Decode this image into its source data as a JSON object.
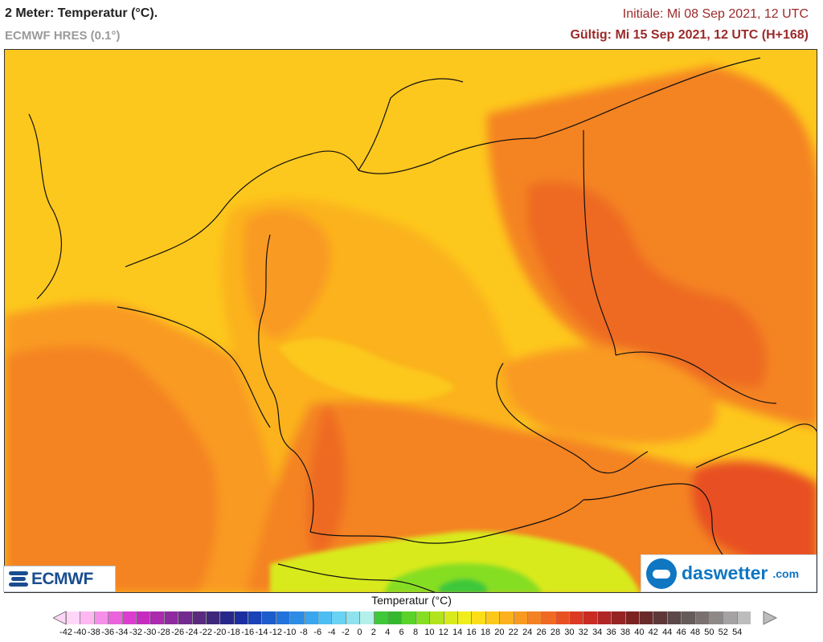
{
  "header": {
    "title": "2 Meter: Temperatur (°C).",
    "model": "ECMWF HRES (0.1°)",
    "init": "Initiale: Mi 08 Sep 2021, 12 UTC",
    "valid": "Gültig: Mi 15 Sep 2021, 12 UTC (H+168)"
  },
  "logos": {
    "ecmwf": "ECMWF",
    "daswetter": "daswetter",
    "daswetter_domain": ".com"
  },
  "legend": {
    "title": "Temperatur (°C)",
    "labels": [
      "-42",
      "-40",
      "-38",
      "-36",
      "-34",
      "-32",
      "-30",
      "-28",
      "-26",
      "-24",
      "-22",
      "-20",
      "-18",
      "-16",
      "-14",
      "-12",
      "-10",
      "-8",
      "-6",
      "-4",
      "-2",
      "0",
      "2",
      "4",
      "6",
      "8",
      "10",
      "12",
      "14",
      "16",
      "18",
      "20",
      "22",
      "24",
      "26",
      "28",
      "30",
      "32",
      "34",
      "36",
      "38",
      "40",
      "42",
      "44",
      "46",
      "48",
      "50",
      "52",
      "54"
    ],
    "colors": [
      "#ffd6f8",
      "#ffb8f2",
      "#f58fe8",
      "#ea62dc",
      "#dc3cd0",
      "#c62bc0",
      "#ab2aae",
      "#8e2a9e",
      "#732a8e",
      "#5a2a7e",
      "#3e287a",
      "#28288a",
      "#1c2fa0",
      "#1a43b8",
      "#1c5ccc",
      "#2274dc",
      "#2c8ce6",
      "#3aa6ee",
      "#4ebef2",
      "#6ad2f2",
      "#8ee2ee",
      "#b4f0ea",
      "#3ec83a",
      "#36b82e",
      "#5ad22a",
      "#86de22",
      "#b2e41e",
      "#d8ea1c",
      "#f0ee1a",
      "#fcde18",
      "#fcc81c",
      "#fcb21e",
      "#f89a20",
      "#f48222",
      "#ef6a22",
      "#e85022",
      "#dc3a22",
      "#c92c22",
      "#b02626",
      "#962424",
      "#7c2222",
      "#6a2a2a",
      "#5e3838",
      "#5c4848",
      "#665a5a",
      "#7a7070",
      "#8e8888",
      "#a4a2a2",
      "#bcbcbc"
    ]
  },
  "map": {
    "colors": {
      "sea_level_cool": "#fdc81d",
      "warm_20": "#fbb21e",
      "warm_22": "#f99a20",
      "warm_24": "#f48322",
      "warm_26": "#ee6a22",
      "warm_28": "#e85022",
      "alpine_cold": "#d8ea1c",
      "alpine_green": "#5ad22a",
      "border": "#111111"
    }
  }
}
